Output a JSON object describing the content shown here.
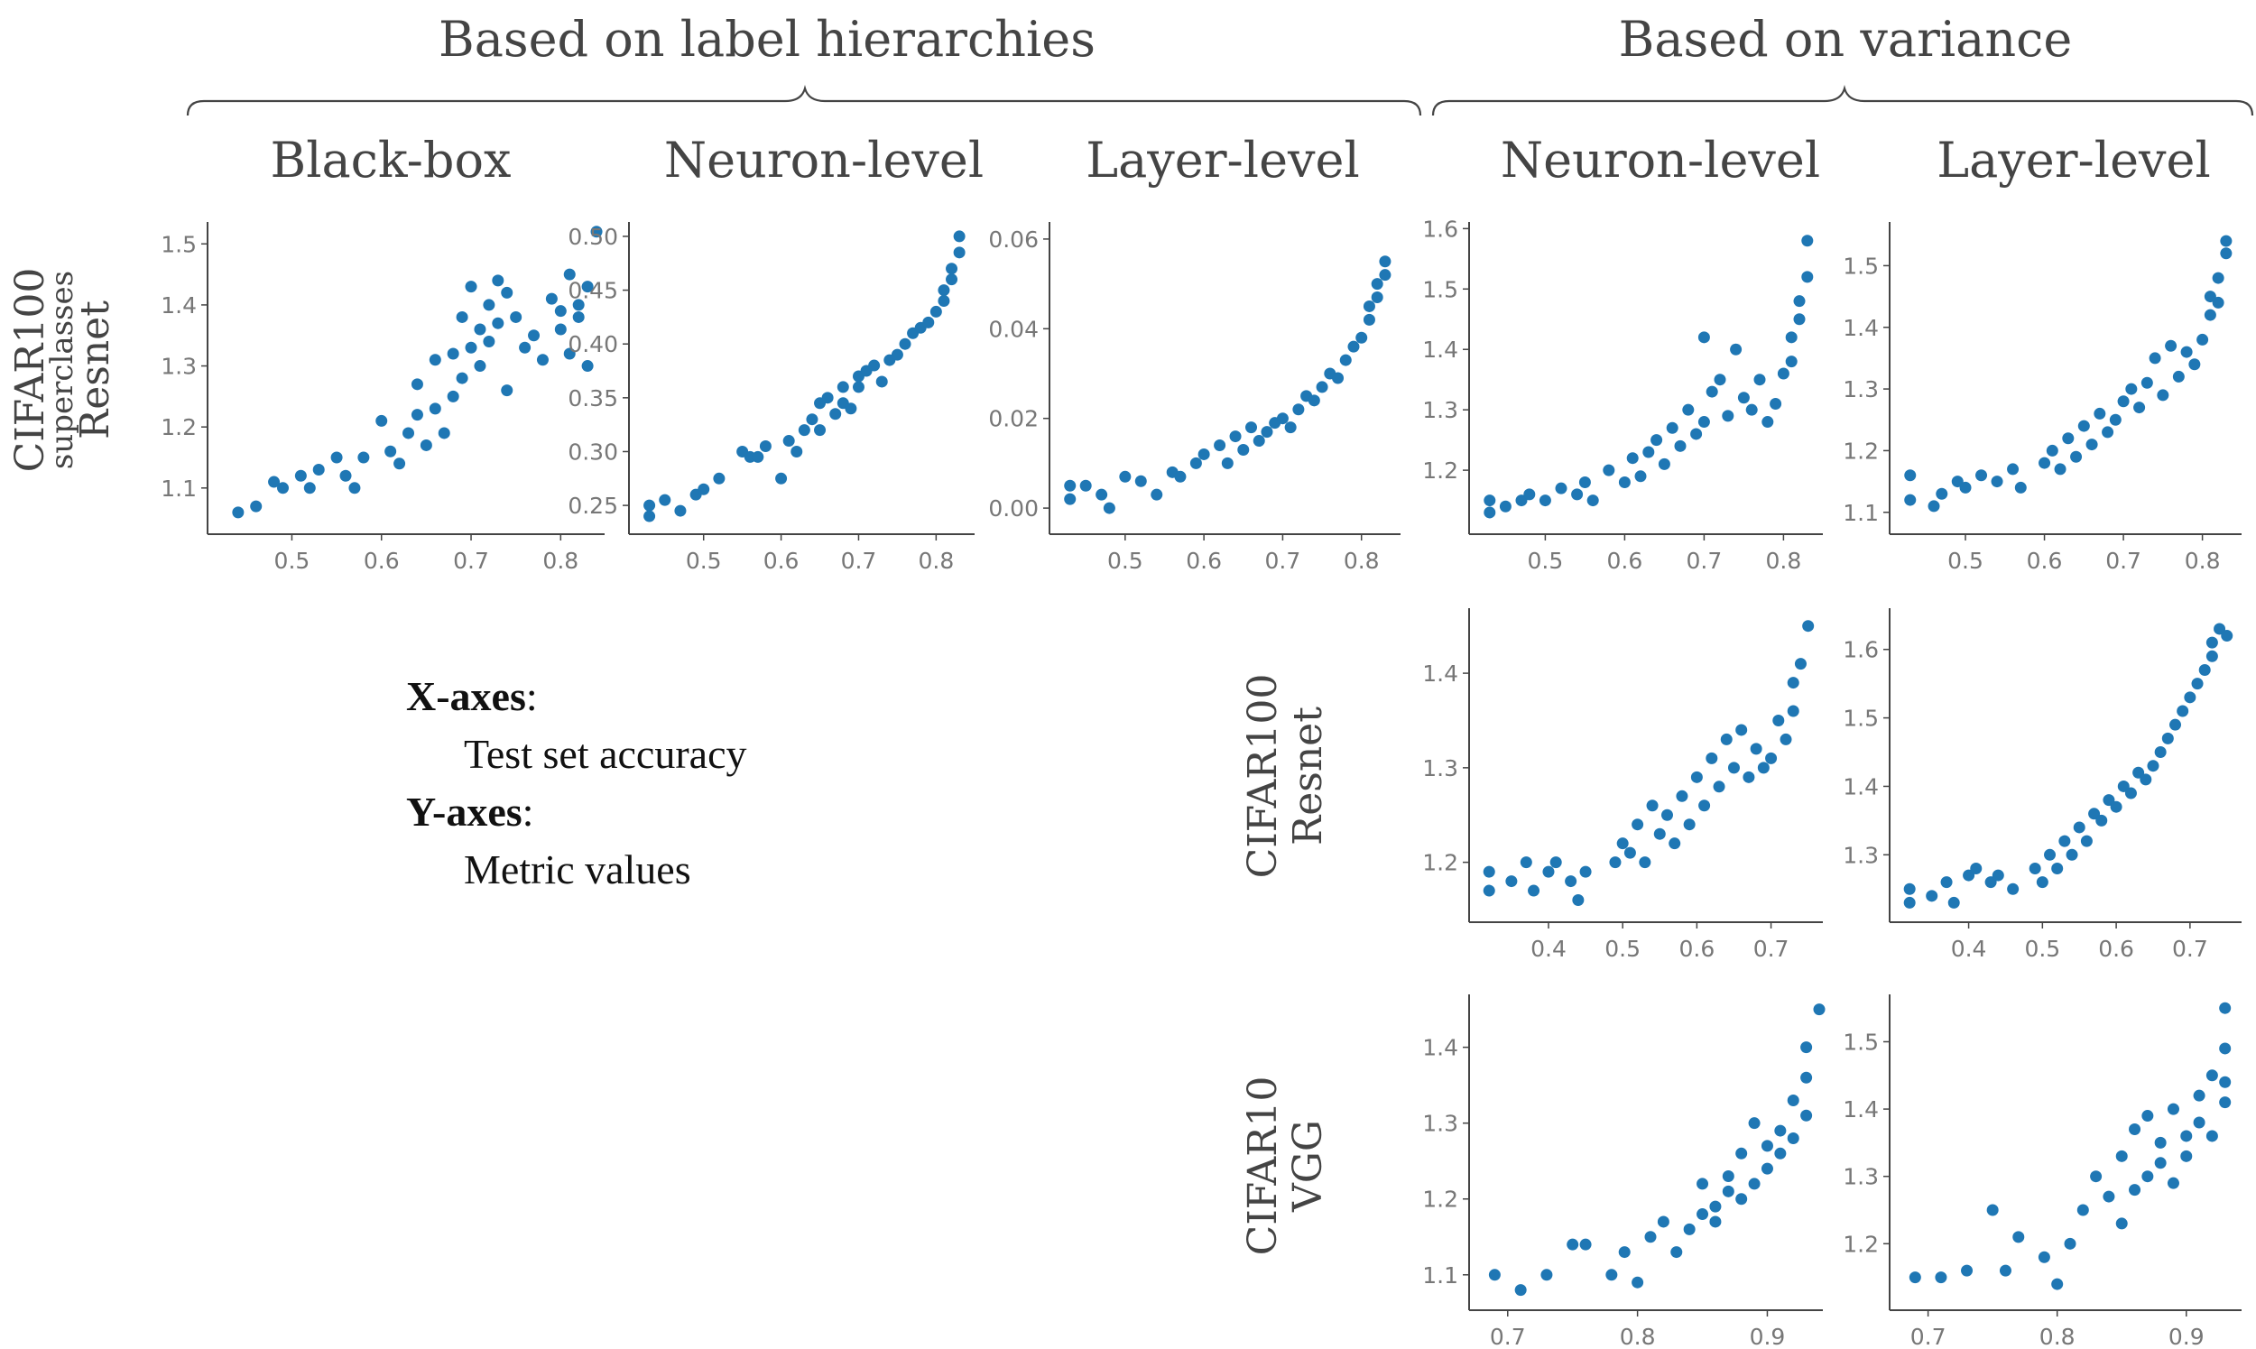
{
  "group_headers": {
    "label_hierarchies": "Based on label hierarchies",
    "variance": "Based on variance"
  },
  "column_headers": [
    "Black-box",
    "Neuron-level",
    "Layer-level",
    "Neuron-level",
    "Layer-level"
  ],
  "row_labels": {
    "row1": {
      "line1": "CIFAR100",
      "line2": "superclasses",
      "line3": "Resnet"
    },
    "row2": {
      "line1": "CIFAR100",
      "line2": "Resnet"
    },
    "row3": {
      "line1": "CIFAR10",
      "line2": "VGG"
    }
  },
  "legend": {
    "x_key": "X-axes",
    "x_value": "Test set accuracy",
    "y_key": "Y-axes",
    "y_value": "Metric values"
  },
  "colors": {
    "points": "#1f77b4",
    "axes": "#444444",
    "ticks": "#777777",
    "text": "#444444"
  },
  "chart_data": [
    {
      "type": "scatter",
      "name": "row1-blackbox",
      "title": "Black-box",
      "xlabel": "Test set accuracy",
      "ylabel": "Metric values",
      "xlim": [
        0.42,
        0.845
      ],
      "ylim": [
        1.045,
        1.53
      ],
      "xticks": [
        0.5,
        0.6,
        0.7,
        0.8
      ],
      "xtick_labels": [
        "0.5",
        "0.6",
        "0.7",
        "0.8"
      ],
      "yticks": [
        1.1,
        1.2,
        1.3,
        1.4,
        1.5
      ],
      "ytick_labels": [
        "1.1",
        "1.2",
        "1.3",
        "1.4",
        "1.5"
      ],
      "x": [
        0.44,
        0.46,
        0.48,
        0.49,
        0.51,
        0.52,
        0.53,
        0.55,
        0.56,
        0.57,
        0.58,
        0.6,
        0.61,
        0.62,
        0.63,
        0.64,
        0.64,
        0.65,
        0.66,
        0.66,
        0.67,
        0.68,
        0.68,
        0.69,
        0.69,
        0.7,
        0.7,
        0.71,
        0.71,
        0.72,
        0.72,
        0.73,
        0.73,
        0.74,
        0.74,
        0.75,
        0.76,
        0.77,
        0.78,
        0.79,
        0.8,
        0.8,
        0.81,
        0.81,
        0.82,
        0.82,
        0.83,
        0.83,
        0.84
      ],
      "y": [
        1.06,
        1.07,
        1.11,
        1.1,
        1.12,
        1.1,
        1.13,
        1.15,
        1.12,
        1.1,
        1.15,
        1.21,
        1.16,
        1.14,
        1.19,
        1.22,
        1.27,
        1.17,
        1.23,
        1.31,
        1.19,
        1.25,
        1.32,
        1.28,
        1.38,
        1.33,
        1.43,
        1.3,
        1.36,
        1.34,
        1.4,
        1.37,
        1.44,
        1.26,
        1.42,
        1.38,
        1.33,
        1.35,
        1.31,
        1.41,
        1.36,
        1.39,
        1.32,
        1.45,
        1.4,
        1.38,
        1.43,
        1.3,
        1.52
      ]
    },
    {
      "type": "scatter",
      "name": "row1-neuron-hier",
      "title": "Neuron-level",
      "xlabel": "Test set accuracy",
      "ylabel": "Metric values",
      "xlim": [
        0.42,
        0.845
      ],
      "ylim": [
        0.235,
        0.51
      ],
      "xticks": [
        0.5,
        0.6,
        0.7,
        0.8
      ],
      "xtick_labels": [
        "0.5",
        "0.6",
        "0.7",
        "0.8"
      ],
      "yticks": [
        0.25,
        0.3,
        0.35,
        0.4,
        0.45,
        0.5
      ],
      "ytick_labels": [
        "0.25",
        "0.30",
        "0.35",
        "0.40",
        "0.45",
        "0.50"
      ],
      "x": [
        0.43,
        0.43,
        0.45,
        0.47,
        0.49,
        0.5,
        0.52,
        0.55,
        0.56,
        0.57,
        0.58,
        0.6,
        0.61,
        0.62,
        0.63,
        0.64,
        0.65,
        0.65,
        0.66,
        0.67,
        0.68,
        0.68,
        0.69,
        0.7,
        0.7,
        0.71,
        0.72,
        0.73,
        0.74,
        0.75,
        0.76,
        0.77,
        0.78,
        0.79,
        0.8,
        0.81,
        0.81,
        0.82,
        0.82,
        0.83,
        0.83
      ],
      "y": [
        0.24,
        0.25,
        0.255,
        0.245,
        0.26,
        0.265,
        0.275,
        0.3,
        0.295,
        0.295,
        0.305,
        0.275,
        0.31,
        0.3,
        0.32,
        0.33,
        0.345,
        0.32,
        0.35,
        0.335,
        0.345,
        0.36,
        0.34,
        0.36,
        0.37,
        0.375,
        0.38,
        0.365,
        0.385,
        0.39,
        0.4,
        0.41,
        0.415,
        0.42,
        0.43,
        0.44,
        0.45,
        0.46,
        0.47,
        0.485,
        0.5
      ]
    },
    {
      "type": "scatter",
      "name": "row1-layer-hier",
      "title": "Layer-level",
      "xlabel": "Test set accuracy",
      "ylabel": "Metric values",
      "xlim": [
        0.42,
        0.845
      ],
      "ylim": [
        -0.003,
        0.063
      ],
      "xticks": [
        0.5,
        0.6,
        0.7,
        0.8
      ],
      "xtick_labels": [
        "0.5",
        "0.6",
        "0.7",
        "0.8"
      ],
      "yticks": [
        0.0,
        0.02,
        0.04,
        0.06
      ],
      "ytick_labels": [
        "0.00",
        "0.02",
        "0.04",
        "0.06"
      ],
      "x": [
        0.43,
        0.43,
        0.45,
        0.47,
        0.48,
        0.5,
        0.52,
        0.54,
        0.56,
        0.57,
        0.59,
        0.6,
        0.62,
        0.63,
        0.64,
        0.65,
        0.66,
        0.67,
        0.68,
        0.69,
        0.7,
        0.71,
        0.72,
        0.73,
        0.74,
        0.75,
        0.76,
        0.77,
        0.78,
        0.79,
        0.8,
        0.81,
        0.81,
        0.82,
        0.82,
        0.83,
        0.83
      ],
      "y": [
        0.002,
        0.005,
        0.005,
        0.003,
        0.0,
        0.007,
        0.006,
        0.003,
        0.008,
        0.007,
        0.01,
        0.012,
        0.014,
        0.01,
        0.016,
        0.013,
        0.018,
        0.015,
        0.017,
        0.019,
        0.02,
        0.018,
        0.022,
        0.025,
        0.024,
        0.027,
        0.03,
        0.029,
        0.033,
        0.036,
        0.038,
        0.042,
        0.045,
        0.047,
        0.05,
        0.055,
        0.052
      ]
    },
    {
      "type": "scatter",
      "name": "row1-neuron-var",
      "title": "Neuron-level",
      "xlabel": "Test set accuracy",
      "ylabel": "Metric values",
      "xlim": [
        0.42,
        0.845
      ],
      "ylim": [
        1.115,
        1.605
      ],
      "xticks": [
        0.5,
        0.6,
        0.7,
        0.8
      ],
      "xtick_labels": [
        "0.5",
        "0.6",
        "0.7",
        "0.8"
      ],
      "yticks": [
        1.2,
        1.3,
        1.4,
        1.5,
        1.6
      ],
      "ytick_labels": [
        "1.2",
        "1.3",
        "1.4",
        "1.5",
        "1.6"
      ],
      "x": [
        0.43,
        0.43,
        0.45,
        0.47,
        0.48,
        0.5,
        0.52,
        0.54,
        0.55,
        0.56,
        0.58,
        0.6,
        0.61,
        0.62,
        0.63,
        0.64,
        0.65,
        0.66,
        0.67,
        0.68,
        0.69,
        0.7,
        0.7,
        0.71,
        0.72,
        0.73,
        0.74,
        0.75,
        0.76,
        0.77,
        0.78,
        0.79,
        0.8,
        0.81,
        0.81,
        0.82,
        0.82,
        0.83,
        0.83
      ],
      "y": [
        1.13,
        1.15,
        1.14,
        1.15,
        1.16,
        1.15,
        1.17,
        1.16,
        1.18,
        1.15,
        1.2,
        1.18,
        1.22,
        1.19,
        1.23,
        1.25,
        1.21,
        1.27,
        1.24,
        1.3,
        1.26,
        1.42,
        1.28,
        1.33,
        1.35,
        1.29,
        1.4,
        1.32,
        1.3,
        1.35,
        1.28,
        1.31,
        1.36,
        1.38,
        1.42,
        1.45,
        1.48,
        1.52,
        1.58
      ]
    },
    {
      "type": "scatter",
      "name": "row1-layer-var",
      "title": "Layer-level",
      "xlabel": "Test set accuracy",
      "ylabel": "Metric values",
      "xlim": [
        0.42,
        0.845
      ],
      "ylim": [
        1.085,
        1.565
      ],
      "xticks": [
        0.5,
        0.6,
        0.7,
        0.8
      ],
      "xtick_labels": [
        "0.5",
        "0.6",
        "0.7",
        "0.8"
      ],
      "yticks": [
        1.1,
        1.2,
        1.3,
        1.4,
        1.5
      ],
      "ytick_labels": [
        "1.1",
        "1.2",
        "1.3",
        "1.4",
        "1.5"
      ],
      "x": [
        0.43,
        0.43,
        0.46,
        0.47,
        0.49,
        0.5,
        0.52,
        0.54,
        0.56,
        0.57,
        0.6,
        0.61,
        0.62,
        0.63,
        0.64,
        0.65,
        0.66,
        0.67,
        0.68,
        0.69,
        0.7,
        0.71,
        0.72,
        0.73,
        0.74,
        0.75,
        0.76,
        0.77,
        0.78,
        0.79,
        0.8,
        0.81,
        0.81,
        0.82,
        0.82,
        0.83,
        0.83
      ],
      "y": [
        1.12,
        1.16,
        1.11,
        1.13,
        1.15,
        1.14,
        1.16,
        1.15,
        1.17,
        1.14,
        1.18,
        1.2,
        1.17,
        1.22,
        1.19,
        1.24,
        1.21,
        1.26,
        1.23,
        1.25,
        1.28,
        1.3,
        1.27,
        1.31,
        1.35,
        1.29,
        1.37,
        1.32,
        1.36,
        1.34,
        1.38,
        1.42,
        1.45,
        1.44,
        1.48,
        1.52,
        1.54
      ]
    },
    {
      "type": "scatter",
      "name": "row2-neuron-var",
      "title": "Neuron-level",
      "xlabel": "Test set accuracy",
      "ylabel": "Metric values",
      "xlim": [
        0.31,
        0.765
      ],
      "ylim": [
        1.15,
        1.465
      ],
      "xticks": [
        0.4,
        0.5,
        0.6,
        0.7
      ],
      "xtick_labels": [
        "0.4",
        "0.5",
        "0.6",
        "0.7"
      ],
      "yticks": [
        1.2,
        1.3,
        1.4
      ],
      "ytick_labels": [
        "1.2",
        "1.3",
        "1.4"
      ],
      "x": [
        0.32,
        0.32,
        0.35,
        0.37,
        0.38,
        0.4,
        0.41,
        0.43,
        0.44,
        0.45,
        0.49,
        0.5,
        0.51,
        0.52,
        0.53,
        0.54,
        0.55,
        0.56,
        0.57,
        0.58,
        0.59,
        0.6,
        0.61,
        0.62,
        0.63,
        0.64,
        0.65,
        0.66,
        0.67,
        0.68,
        0.69,
        0.7,
        0.71,
        0.72,
        0.73,
        0.73,
        0.74,
        0.75
      ],
      "y": [
        1.17,
        1.19,
        1.18,
        1.2,
        1.17,
        1.19,
        1.2,
        1.18,
        1.16,
        1.19,
        1.2,
        1.22,
        1.21,
        1.24,
        1.2,
        1.26,
        1.23,
        1.25,
        1.22,
        1.27,
        1.24,
        1.29,
        1.26,
        1.31,
        1.28,
        1.33,
        1.3,
        1.34,
        1.29,
        1.32,
        1.3,
        1.31,
        1.35,
        1.33,
        1.36,
        1.39,
        1.41,
        1.45
      ]
    },
    {
      "type": "scatter",
      "name": "row2-layer-var",
      "title": "Layer-level",
      "xlabel": "Test set accuracy",
      "ylabel": "Metric values",
      "xlim": [
        0.31,
        0.765
      ],
      "ylim": [
        1.22,
        1.655
      ],
      "xticks": [
        0.4,
        0.5,
        0.6,
        0.7
      ],
      "xtick_labels": [
        "0.4",
        "0.5",
        "0.6",
        "0.7"
      ],
      "yticks": [
        1.3,
        1.4,
        1.5,
        1.6
      ],
      "ytick_labels": [
        "1.3",
        "1.4",
        "1.5",
        "1.6"
      ],
      "x": [
        0.32,
        0.32,
        0.35,
        0.37,
        0.38,
        0.4,
        0.41,
        0.43,
        0.44,
        0.46,
        0.49,
        0.5,
        0.51,
        0.52,
        0.53,
        0.54,
        0.55,
        0.56,
        0.57,
        0.58,
        0.59,
        0.6,
        0.61,
        0.62,
        0.63,
        0.64,
        0.65,
        0.66,
        0.67,
        0.68,
        0.69,
        0.7,
        0.71,
        0.72,
        0.73,
        0.73,
        0.74,
        0.75
      ],
      "y": [
        1.23,
        1.25,
        1.24,
        1.26,
        1.23,
        1.27,
        1.28,
        1.26,
        1.27,
        1.25,
        1.28,
        1.26,
        1.3,
        1.28,
        1.32,
        1.3,
        1.34,
        1.32,
        1.36,
        1.35,
        1.38,
        1.37,
        1.4,
        1.39,
        1.42,
        1.41,
        1.43,
        1.45,
        1.47,
        1.49,
        1.51,
        1.53,
        1.55,
        1.57,
        1.59,
        1.61,
        1.63,
        1.62
      ]
    },
    {
      "type": "scatter",
      "name": "row3-neuron-var",
      "title": "Neuron-level",
      "xlabel": "Test set accuracy",
      "ylabel": "Metric values",
      "xlim": [
        0.68,
        0.94
      ],
      "ylim": [
        1.07,
        1.465
      ],
      "xticks": [
        0.7,
        0.8,
        0.9
      ],
      "xtick_labels": [
        "0.7",
        "0.8",
        "0.9"
      ],
      "yticks": [
        1.1,
        1.2,
        1.3,
        1.4
      ],
      "ytick_labels": [
        "1.1",
        "1.2",
        "1.3",
        "1.4"
      ],
      "x": [
        0.69,
        0.71,
        0.73,
        0.75,
        0.76,
        0.78,
        0.79,
        0.8,
        0.81,
        0.82,
        0.83,
        0.84,
        0.85,
        0.85,
        0.86,
        0.86,
        0.87,
        0.87,
        0.88,
        0.88,
        0.89,
        0.89,
        0.9,
        0.9,
        0.91,
        0.91,
        0.92,
        0.92,
        0.93,
        0.93,
        0.93,
        0.94
      ],
      "y": [
        1.1,
        1.08,
        1.1,
        1.14,
        1.14,
        1.1,
        1.13,
        1.09,
        1.15,
        1.17,
        1.13,
        1.16,
        1.18,
        1.22,
        1.19,
        1.17,
        1.21,
        1.23,
        1.2,
        1.26,
        1.22,
        1.3,
        1.27,
        1.24,
        1.29,
        1.26,
        1.33,
        1.28,
        1.36,
        1.4,
        1.31,
        1.45
      ]
    },
    {
      "type": "scatter",
      "name": "row3-layer-var",
      "title": "Layer-level",
      "xlabel": "Test set accuracy",
      "ylabel": "Metric values",
      "xlim": [
        0.68,
        0.94
      ],
      "ylim": [
        1.12,
        1.565
      ],
      "xticks": [
        0.7,
        0.8,
        0.9
      ],
      "xtick_labels": [
        "0.7",
        "0.8",
        "0.9"
      ],
      "yticks": [
        1.2,
        1.3,
        1.4,
        1.5
      ],
      "ytick_labels": [
        "1.2",
        "1.3",
        "1.4",
        "1.5"
      ],
      "x": [
        0.69,
        0.71,
        0.73,
        0.75,
        0.76,
        0.77,
        0.79,
        0.8,
        0.81,
        0.82,
        0.83,
        0.84,
        0.85,
        0.85,
        0.86,
        0.86,
        0.87,
        0.87,
        0.88,
        0.88,
        0.89,
        0.89,
        0.9,
        0.9,
        0.91,
        0.91,
        0.92,
        0.92,
        0.93,
        0.93,
        0.93,
        0.93
      ],
      "y": [
        1.15,
        1.15,
        1.16,
        1.25,
        1.16,
        1.21,
        1.18,
        1.14,
        1.2,
        1.25,
        1.3,
        1.27,
        1.23,
        1.33,
        1.28,
        1.37,
        1.3,
        1.39,
        1.32,
        1.35,
        1.29,
        1.4,
        1.36,
        1.33,
        1.42,
        1.38,
        1.45,
        1.36,
        1.41,
        1.49,
        1.44,
        1.55
      ]
    }
  ]
}
